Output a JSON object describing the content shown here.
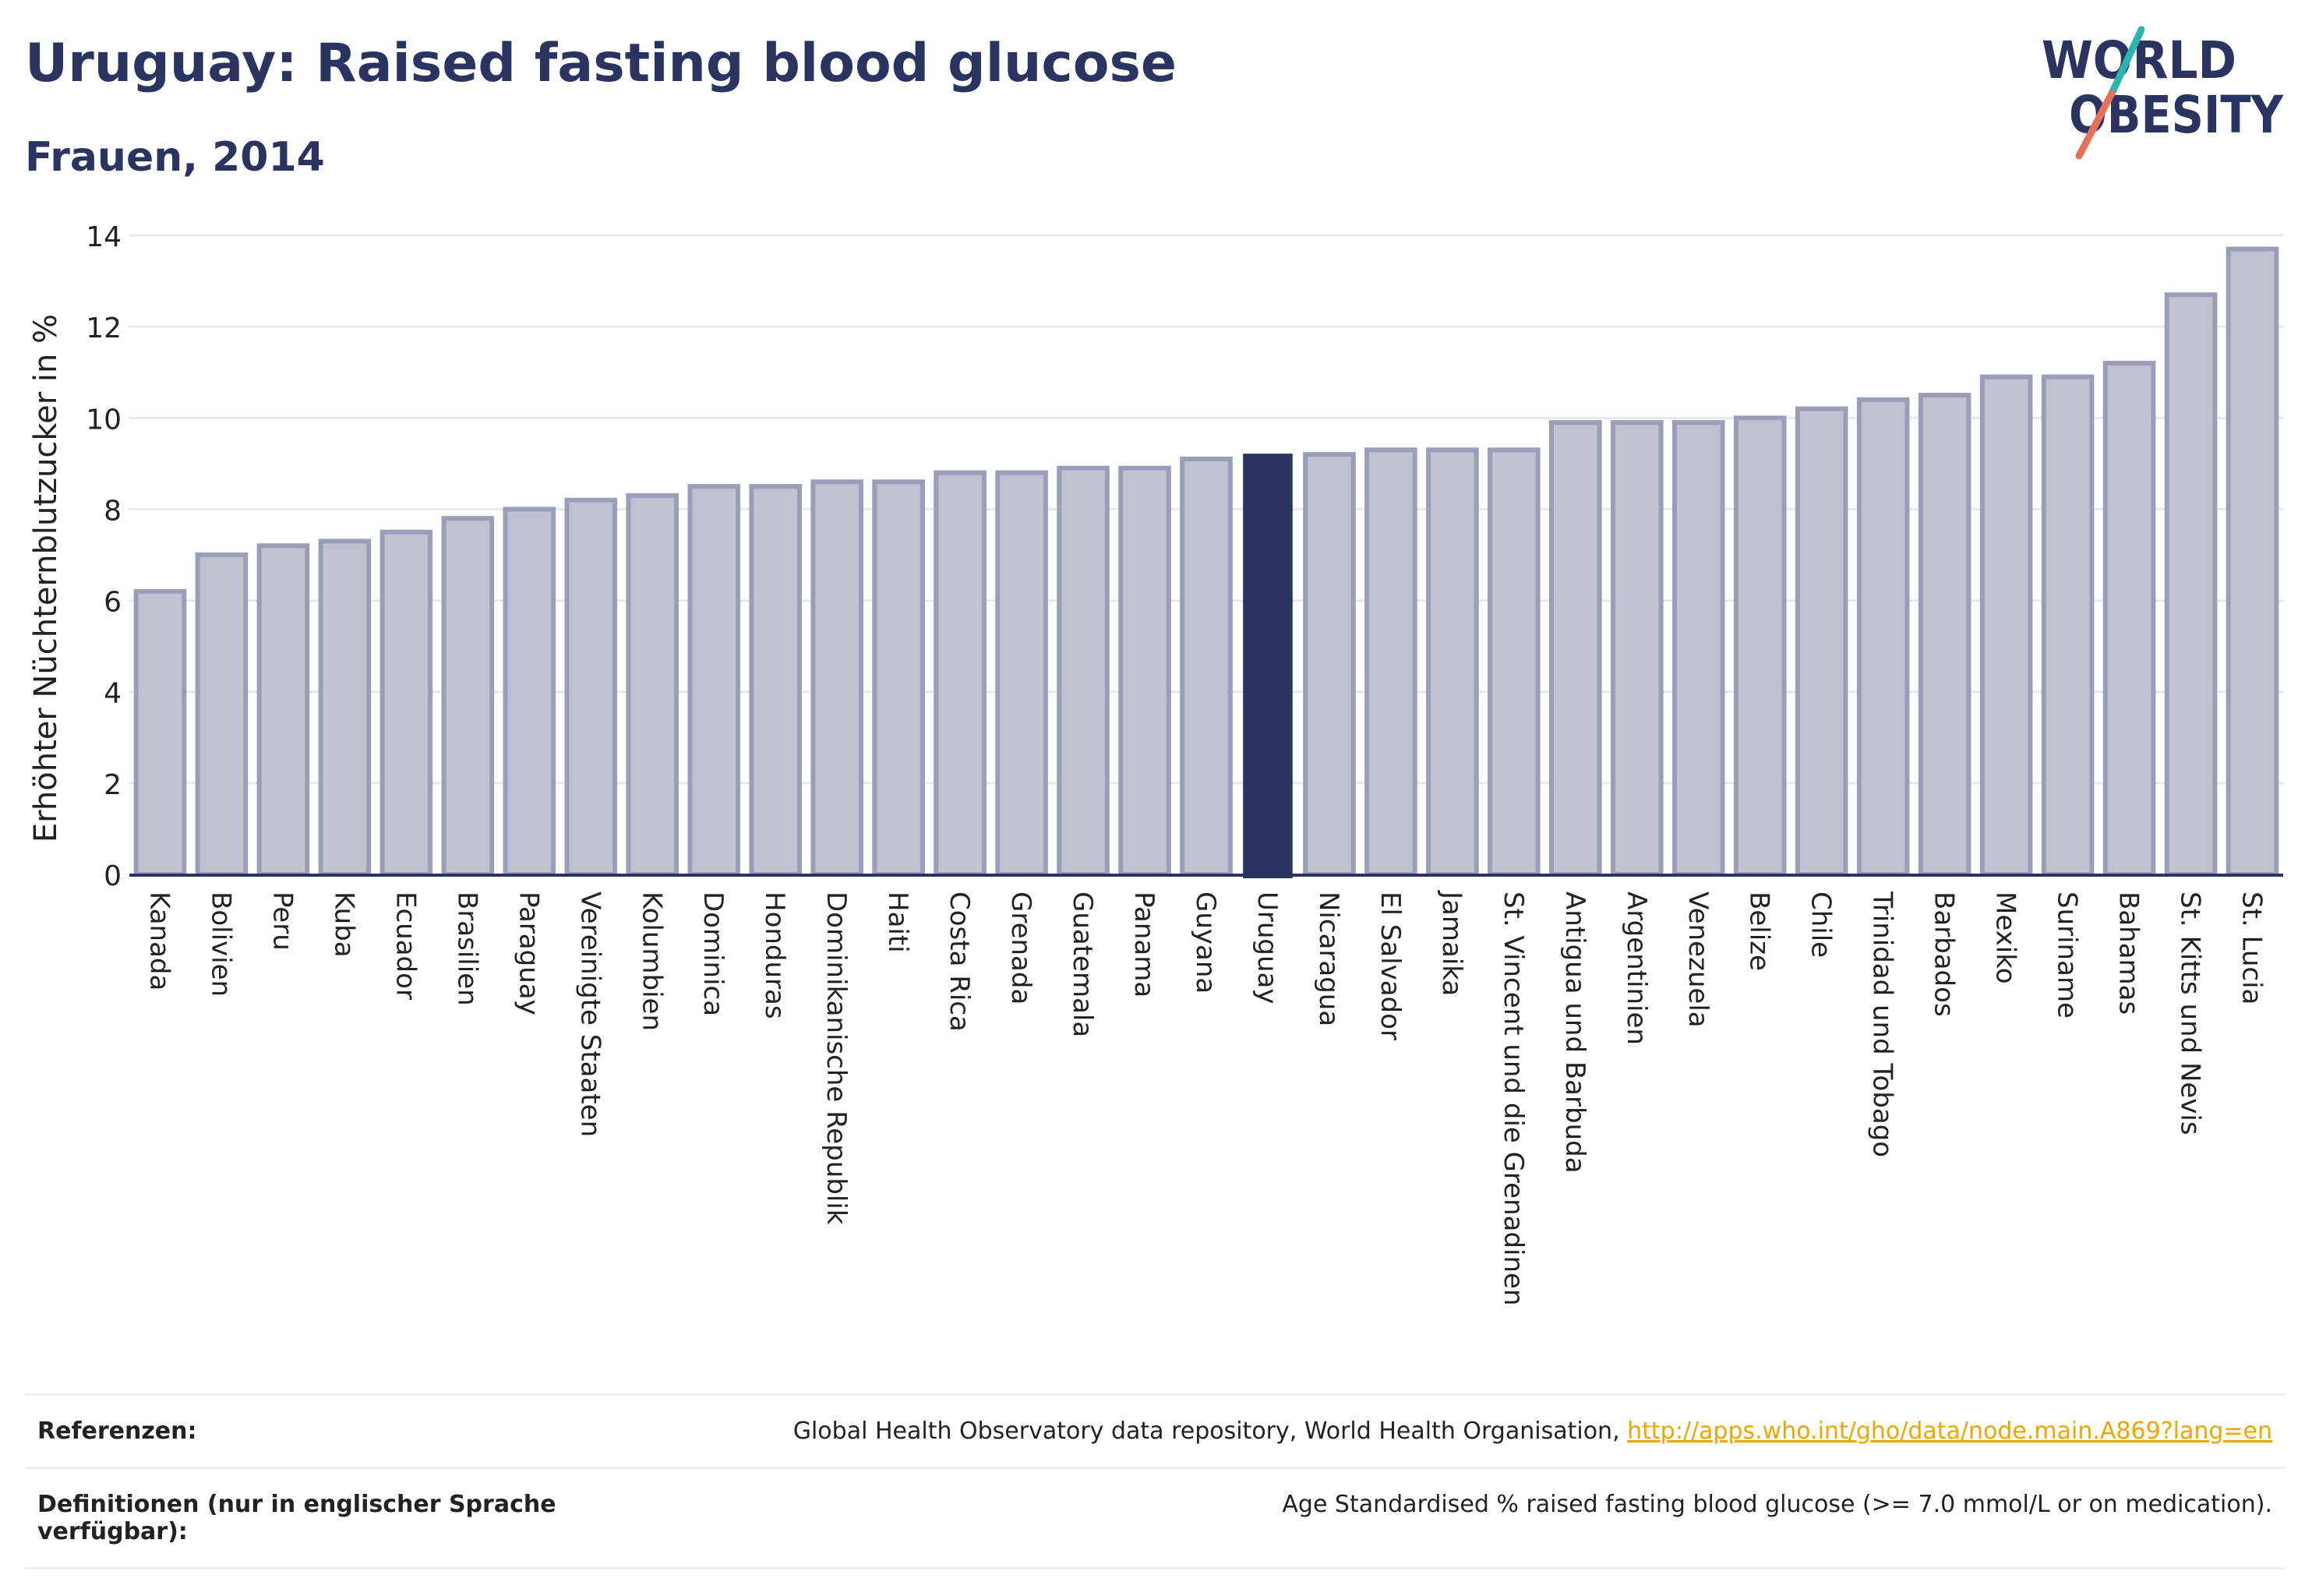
{
  "header": {
    "title": "Uruguay: Raised fasting blood glucose",
    "subtitle": "Frauen, 2014"
  },
  "logo": {
    "line1": "WORLD",
    "line2": "OBESITY",
    "text_color": "#2b3461",
    "slash_colors": [
      "#2bb5b0",
      "#e8705a"
    ]
  },
  "chart_data": {
    "type": "bar",
    "ylabel": "Erhöhter Nüchternblutzucker in %",
    "ylim": [
      0,
      14
    ],
    "yticks": [
      0,
      2,
      4,
      6,
      8,
      10,
      12,
      14
    ],
    "grid": true,
    "highlight": "Uruguay",
    "colors": {
      "bar_fill": "#bfc2d0",
      "bar_stroke": "#9a9eb8",
      "highlight": "#2b3461",
      "grid": "#e6e8f0",
      "axis": "#2b3461"
    },
    "categories": [
      "Kanada",
      "Bolivien",
      "Peru",
      "Kuba",
      "Ecuador",
      "Brasilien",
      "Paraguay",
      "Vereinigte Staaten",
      "Kolumbien",
      "Dominica",
      "Honduras",
      "Dominikanische Republik",
      "Haiti",
      "Costa Rica",
      "Grenada",
      "Guatemala",
      "Panama",
      "Guyana",
      "Uruguay",
      "Nicaragua",
      "El Salvador",
      "Jamaika",
      "St. Vincent und die Grenadinen",
      "Antigua und Barbuda",
      "Argentinien",
      "Venezuela",
      "Belize",
      "Chile",
      "Trinidad und Tobago",
      "Barbados",
      "Mexiko",
      "Suriname",
      "Bahamas",
      "St. Kitts und Nevis",
      "St. Lucia"
    ],
    "values": [
      6.2,
      7.0,
      7.2,
      7.3,
      7.5,
      7.8,
      8.0,
      8.2,
      8.3,
      8.5,
      8.5,
      8.6,
      8.6,
      8.8,
      8.8,
      8.9,
      8.9,
      9.1,
      9.2,
      9.2,
      9.3,
      9.3,
      9.3,
      9.9,
      9.9,
      9.9,
      10.0,
      10.2,
      10.4,
      10.5,
      10.9,
      10.9,
      11.2,
      12.7,
      13.7
    ]
  },
  "footer": {
    "references_label": "Referenzen:",
    "references_text": "Global Health Observatory data repository, World Health Organisation, ",
    "references_link": "http://apps.who.int/gho/data/node.main.A869?lang=en",
    "definitions_label": "Definitionen (nur in englischer Sprache verfügbar):",
    "definitions_text": "Age Standardised % raised fasting blood glucose (>= 7.0 mmol/L or on medication)."
  }
}
